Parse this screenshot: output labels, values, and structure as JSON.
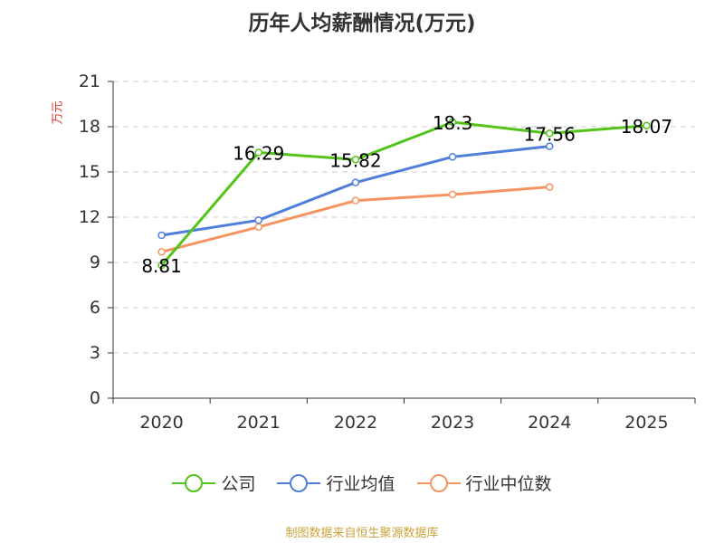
{
  "title": "历年人均薪酬情况(万元)",
  "source_note": "制图数据来自恒生聚源数据库",
  "colors": {
    "title": "#333333",
    "unit": "#e0332d",
    "source": "#c8a23a",
    "axis": "#333333",
    "grid": "#cccccc",
    "label": "#000000"
  },
  "chart_data": {
    "type": "line",
    "x": [
      "2020",
      "2021",
      "2022",
      "2023",
      "2024",
      "2025"
    ],
    "ylabel": "万元",
    "ylim": [
      0,
      21
    ],
    "yticks": [
      0,
      3,
      6,
      9,
      12,
      15,
      18,
      21
    ],
    "grid": true,
    "legend_position": "bottom",
    "series": [
      {
        "name": "公司",
        "color": "#52c41a",
        "values": [
          8.81,
          16.29,
          15.82,
          18.3,
          17.56,
          18.07
        ],
        "labels": [
          "8.81",
          "16.29",
          "15.82",
          "18.3",
          "17.56",
          "18.07"
        ]
      },
      {
        "name": "行业均值",
        "color": "#4f7fd8",
        "values": [
          10.8,
          11.8,
          14.3,
          16.0,
          16.7,
          null
        ],
        "labels": []
      },
      {
        "name": "行业中位数",
        "color": "#f59461",
        "values": [
          9.7,
          11.35,
          13.1,
          13.5,
          14.0,
          null
        ],
        "labels": []
      }
    ]
  }
}
